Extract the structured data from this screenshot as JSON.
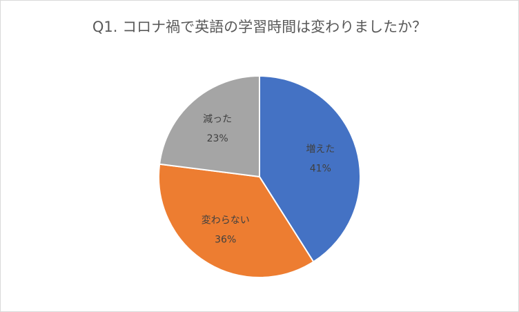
{
  "chart_data": {
    "type": "pie",
    "title": "Q1. コロナ禍で英語の学習時間は変わりましたか？",
    "categories": [
      "増えた",
      "変わらない",
      "減った"
    ],
    "values": [
      41,
      36,
      23
    ],
    "value_labels": [
      "41%",
      "36%",
      "23%"
    ],
    "colors": [
      "#4472c4",
      "#ed7d31",
      "#a5a5a5"
    ]
  }
}
